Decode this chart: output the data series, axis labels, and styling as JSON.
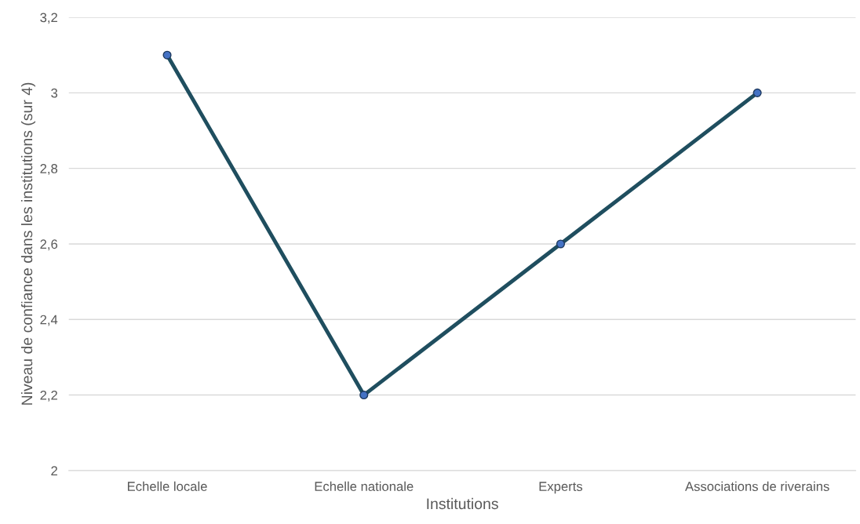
{
  "chart_data": {
    "type": "line",
    "xlabel": "Institutions",
    "ylabel": "Niveau de confiance dans les institutions (sur 4)",
    "categories": [
      "Echelle locale",
      "Echelle nationale",
      "Experts",
      "Associations de riverains"
    ],
    "series": [
      {
        "color": "#1f4e5f",
        "values": [
          3.1,
          2.2,
          2.6,
          3.0
        ]
      }
    ],
    "ylim": [
      2,
      3.2
    ],
    "yticks": [
      2,
      {
        "value": 2.2,
        "label": "2,2"
      },
      {
        "value": 2.4,
        "label": "2,4"
      },
      {
        "value": 2.6,
        "label": "2,6"
      },
      {
        "value": 2.8,
        "label": "2,8"
      },
      3,
      {
        "value": 3.2,
        "label": "3,2"
      }
    ],
    "grid": "y",
    "marker": "circle",
    "line_style": "solid"
  }
}
